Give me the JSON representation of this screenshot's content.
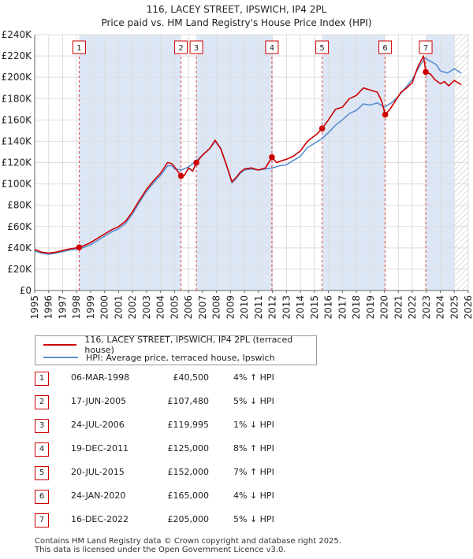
{
  "chart_data": {
    "type": "line",
    "title": "116, LACEY STREET, IPSWICH, IP4 2PL",
    "subtitle": "Price paid vs. HM Land Registry's House Price Index (HPI)",
    "ylim": [
      0,
      240000
    ],
    "xlim": [
      1995,
      2026
    ],
    "y_ticks": [
      0,
      20000,
      40000,
      60000,
      80000,
      100000,
      120000,
      140000,
      160000,
      180000,
      200000,
      220000,
      240000
    ],
    "y_tick_labels": [
      "£0",
      "£20K",
      "£40K",
      "£60K",
      "£80K",
      "£100K",
      "£120K",
      "£140K",
      "£160K",
      "£180K",
      "£200K",
      "£220K",
      "£240K"
    ],
    "x_ticks": [
      1995,
      1996,
      1997,
      1998,
      1999,
      2000,
      2001,
      2002,
      2003,
      2004,
      2005,
      2006,
      2007,
      2008,
      2009,
      2010,
      2011,
      2012,
      2013,
      2014,
      2015,
      2016,
      2017,
      2018,
      2019,
      2020,
      2021,
      2022,
      2023,
      2024,
      2025,
      2026
    ],
    "x_tick_labels": [
      "1995",
      "1996",
      "1997",
      "1998",
      "1999",
      "2000",
      "2001",
      "2002",
      "2003",
      "2004",
      "2005",
      "2006",
      "2007",
      "2008",
      "2009",
      "2010",
      "2011",
      "2012",
      "2013",
      "2014",
      "2015",
      "2016",
      "2017",
      "2018",
      "2019",
      "2020",
      "2021",
      "2022",
      "2023",
      "2024",
      "2025",
      "2026"
    ],
    "series": [
      {
        "name": "116, LACEY STREET, IPSWICH, IP4 2PL (terraced house)",
        "color": "#cc0000",
        "x": [
          1995.0,
          1995.5,
          1996.0,
          1996.5,
          1997.0,
          1997.5,
          1998.0,
          1998.18,
          1998.5,
          1999.0,
          1999.5,
          2000.0,
          2000.5,
          2001.0,
          2001.5,
          2002.0,
          2002.5,
          2003.0,
          2003.5,
          2004.0,
          2004.5,
          2004.8,
          2005.0,
          2005.46,
          2005.7,
          2006.0,
          2006.3,
          2006.56,
          2007.0,
          2007.5,
          2007.9,
          2008.3,
          2008.7,
          2009.1,
          2009.4,
          2009.7,
          2010.0,
          2010.5,
          2011.0,
          2011.5,
          2011.96,
          2012.3,
          2012.7,
          2013.0,
          2013.5,
          2014.0,
          2014.5,
          2014.8,
          2015.2,
          2015.55,
          2016.0,
          2016.5,
          2017.0,
          2017.5,
          2018.0,
          2018.5,
          2019.0,
          2019.5,
          2019.8,
          2020.06,
          2020.4,
          2020.8,
          2021.2,
          2021.6,
          2022.0,
          2022.4,
          2022.8,
          2022.96,
          2023.3,
          2023.6,
          2024.0,
          2024.3,
          2024.6,
          2025.0,
          2025.5
        ],
        "values": [
          38500,
          36000,
          35000,
          36000,
          37500,
          39000,
          40000,
          40500,
          42000,
          45000,
          49000,
          53000,
          57000,
          60000,
          65000,
          74000,
          85000,
          95000,
          103000,
          110000,
          120000,
          119000,
          116000,
          107480,
          108000,
          115000,
          112000,
          119995,
          127000,
          133000,
          141000,
          133000,
          118000,
          102000,
          106000,
          111000,
          114000,
          115000,
          113000,
          115000,
          125000,
          120000,
          122000,
          123000,
          126000,
          131000,
          140000,
          143000,
          147000,
          152000,
          160000,
          170000,
          172000,
          180000,
          183000,
          190000,
          188000,
          186000,
          178000,
          165000,
          170000,
          178000,
          186000,
          190000,
          195000,
          210000,
          220000,
          205000,
          203000,
          198000,
          194000,
          196000,
          192000,
          197000,
          193000
        ]
      },
      {
        "name": "HPI: Average price, terraced house, Ipswich",
        "color": "#5b8fd0",
        "x": [
          1995.0,
          1995.5,
          1996.0,
          1996.5,
          1997.0,
          1997.5,
          1998.0,
          1998.5,
          1999.0,
          1999.5,
          2000.0,
          2000.5,
          2001.0,
          2001.5,
          2002.0,
          2002.5,
          2003.0,
          2003.5,
          2004.0,
          2004.5,
          2004.8,
          2005.0,
          2005.5,
          2006.0,
          2006.5,
          2007.0,
          2007.5,
          2007.9,
          2008.3,
          2008.7,
          2009.1,
          2009.4,
          2009.7,
          2010.0,
          2010.5,
          2011.0,
          2011.5,
          2012.0,
          2012.5,
          2013.0,
          2013.5,
          2014.0,
          2014.5,
          2015.0,
          2015.5,
          2016.0,
          2016.5,
          2017.0,
          2017.5,
          2018.0,
          2018.5,
          2019.0,
          2019.5,
          2020.0,
          2020.5,
          2021.0,
          2021.5,
          2022.0,
          2022.5,
          2022.9,
          2023.3,
          2023.7,
          2024.0,
          2024.5,
          2025.0,
          2025.5
        ],
        "values": [
          37000,
          35000,
          34000,
          35000,
          36500,
          38000,
          38500,
          40500,
          43000,
          47000,
          51000,
          55000,
          58000,
          63000,
          72000,
          83000,
          93000,
          101000,
          108000,
          117000,
          117000,
          114000,
          113000,
          116000,
          121000,
          127000,
          133000,
          140000,
          133000,
          118000,
          101000,
          105000,
          110000,
          113000,
          114000,
          113000,
          114000,
          115000,
          117000,
          118000,
          122000,
          126000,
          134000,
          138000,
          142000,
          148000,
          155000,
          160000,
          166000,
          169000,
          175000,
          174000,
          176000,
          172000,
          176000,
          182000,
          190000,
          198000,
          210000,
          218000,
          215000,
          212000,
          206000,
          204000,
          208000,
          204000
        ]
      }
    ],
    "sales": [
      {
        "n": "1",
        "x": 1998.18,
        "value": 40500
      },
      {
        "n": "2",
        "x": 2005.46,
        "value": 107480
      },
      {
        "n": "3",
        "x": 2006.56,
        "value": 119995
      },
      {
        "n": "4",
        "x": 2011.96,
        "value": 125000
      },
      {
        "n": "5",
        "x": 2015.55,
        "value": 152000
      },
      {
        "n": "6",
        "x": 2020.06,
        "value": 165000
      },
      {
        "n": "7",
        "x": 2022.96,
        "value": 205000
      }
    ],
    "shaded_periods": [
      [
        1998.18,
        2005.46
      ],
      [
        2006.56,
        2011.96
      ],
      [
        2015.55,
        2020.06
      ],
      [
        2022.96,
        2025.0
      ]
    ],
    "future_hatch_from": 2025.0
  },
  "colors": {
    "property_line": "#cc0000",
    "hpi_line": "#5b8fd0",
    "shade": "#dde6f5",
    "grid": "#dddddd"
  },
  "legend": {
    "property_label": "116, LACEY STREET, IPSWICH, IP4 2PL (terraced house)",
    "hpi_label": "HPI: Average price, terraced house, Ipswich"
  },
  "sales_table": [
    {
      "n": "1",
      "date": "06-MAR-1998",
      "price": "£40,500",
      "hpi": "4% ↑ HPI"
    },
    {
      "n": "2",
      "date": "17-JUN-2005",
      "price": "£107,480",
      "hpi": "5% ↓ HPI"
    },
    {
      "n": "3",
      "date": "24-JUL-2006",
      "price": "£119,995",
      "hpi": "1% ↓ HPI"
    },
    {
      "n": "4",
      "date": "19-DEC-2011",
      "price": "£125,000",
      "hpi": "8% ↑ HPI"
    },
    {
      "n": "5",
      "date": "20-JUL-2015",
      "price": "£152,000",
      "hpi": "7% ↑ HPI"
    },
    {
      "n": "6",
      "date": "24-JAN-2020",
      "price": "£165,000",
      "hpi": "4% ↓ HPI"
    },
    {
      "n": "7",
      "date": "16-DEC-2022",
      "price": "£205,000",
      "hpi": "5% ↓ HPI"
    }
  ],
  "footer": {
    "line1": "Contains HM Land Registry data © Crown copyright and database right 2025.",
    "line2": "This data is licensed under the Open Government Licence v3.0."
  }
}
